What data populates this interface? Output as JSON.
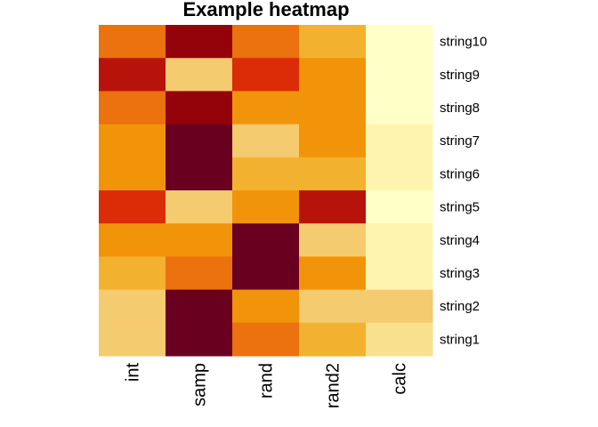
{
  "chart_data": {
    "type": "heatmap",
    "title": "Example heatmap",
    "columns": [
      "int",
      "samp",
      "rand",
      "rand2",
      "calc"
    ],
    "rows": [
      "string10",
      "string9",
      "string8",
      "string7",
      "string6",
      "string5",
      "string4",
      "string3",
      "string2",
      "string1"
    ],
    "color_scale": [
      "#FFFFC8",
      "#FEF4B0",
      "#F8E08E",
      "#F5CB6F",
      "#F3B130",
      "#F29409",
      "#EC710F",
      "#DB2B07",
      "#B8130A",
      "#940309",
      "#690020"
    ],
    "scale_min": 0,
    "scale_max": 10,
    "values": [
      [
        6,
        9,
        6,
        4,
        0
      ],
      [
        8,
        3,
        7,
        5,
        0
      ],
      [
        6,
        9,
        5,
        5,
        0
      ],
      [
        5,
        10,
        3,
        5,
        1
      ],
      [
        5,
        10,
        4,
        4,
        1
      ],
      [
        7,
        3,
        5,
        8,
        0
      ],
      [
        5,
        5,
        10,
        3,
        1
      ],
      [
        4,
        6,
        10,
        5,
        1
      ],
      [
        3,
        10,
        5,
        3,
        3
      ],
      [
        3,
        10,
        6,
        4,
        2
      ]
    ],
    "legend": "none",
    "grid": false
  }
}
